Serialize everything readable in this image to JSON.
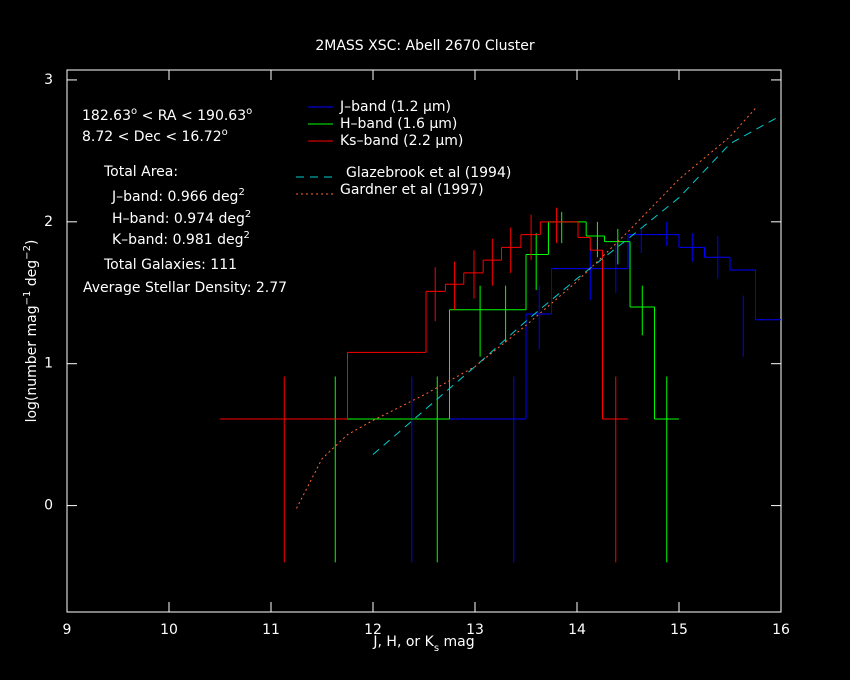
{
  "chart_data": {
    "type": "step-histogram",
    "title": "2MASS XSC: Abell 2670 Cluster",
    "x_label": [
      "J, H, or K",
      "s",
      " mag"
    ],
    "y_label": [
      "log(number mag",
      "−1",
      " deg",
      "−2",
      ")"
    ],
    "xlim": [
      9,
      16
    ],
    "ylim": [
      -0.75,
      3.07
    ],
    "xticks": [
      9,
      10,
      11,
      12,
      13,
      14,
      15,
      16
    ],
    "yticks": [
      0,
      1,
      2,
      3
    ],
    "annotations": [
      [
        "182.63",
        "o",
        " < RA < 190.63",
        "o"
      ],
      [
        "8.72 < Dec < 16.72",
        "o"
      ],
      [
        "Total Area:"
      ],
      [
        "J–band: 0.966 deg",
        "2"
      ],
      [
        "H–band: 0.974 deg",
        "2"
      ],
      [
        "K–band: 0.981 deg",
        "2"
      ],
      [
        "Total Galaxies: 111"
      ],
      [
        "Average Stellar Density: 2.77"
      ]
    ],
    "series": [
      {
        "name": "J–band (1.2 μm)",
        "color": "#0000ff",
        "bins": [
          11.88,
          13.5,
          13.75,
          14.5,
          15.0,
          15.25,
          15.5,
          15.75,
          16.0
        ],
        "values": [
          0.61,
          1.35,
          1.67,
          1.91,
          1.82,
          1.75,
          1.66,
          1.31
        ],
        "err_x": [
          12.38,
          13.38,
          13.63,
          14.13,
          14.38,
          14.63,
          14.88,
          15.13,
          15.38,
          15.63
        ],
        "err_low": [
          -0.4,
          -0.4,
          1.1,
          1.45,
          1.5,
          1.78,
          1.83,
          1.72,
          1.6,
          1.05
        ],
        "err_high": [
          0.91,
          0.91,
          1.55,
          1.82,
          1.85,
          1.95,
          2.0,
          1.92,
          1.9,
          1.48
        ]
      },
      {
        "name": "H–band (1.6 μm)",
        "color": "#00ff00",
        "bins": [
          11.13,
          12.75,
          13.5,
          13.72,
          14.09,
          14.27,
          14.52,
          14.76,
          15.0
        ],
        "values": [
          0.61,
          1.38,
          1.77,
          2.0,
          1.9,
          1.86,
          1.4,
          0.61
        ],
        "err_x": [
          11.63,
          12.63,
          13.05,
          13.3,
          13.6,
          13.85,
          14.2,
          14.4,
          14.64,
          14.88
        ],
        "err_low": [
          -0.4,
          -0.4,
          1.05,
          1.15,
          1.52,
          1.85,
          1.75,
          1.7,
          1.2,
          -0.4
        ],
        "err_high": [
          0.91,
          0.91,
          1.55,
          1.55,
          1.92,
          2.07,
          2.0,
          1.95,
          1.55,
          0.91
        ]
      },
      {
        "name": "Ks–band (2.2 μm)",
        "color": "#ff0000",
        "bins": [
          10.5,
          11.75,
          12.52,
          12.71,
          12.89,
          13.08,
          13.26,
          13.45,
          13.64,
          14.01,
          14.13,
          14.25,
          14.5
        ],
        "values": [
          0.61,
          1.08,
          1.51,
          1.56,
          1.64,
          1.73,
          1.82,
          1.91,
          2.0,
          1.89,
          1.8,
          0.61
        ],
        "err_x": [
          11.13,
          12.61,
          12.8,
          12.99,
          13.17,
          13.35,
          13.55,
          13.8,
          14.38
        ],
        "err_low": [
          -0.4,
          1.3,
          1.38,
          1.46,
          1.55,
          1.64,
          1.73,
          1.85,
          -0.4
        ],
        "err_high": [
          0.91,
          1.68,
          1.72,
          1.8,
          1.88,
          1.96,
          2.05,
          2.1,
          0.91
        ]
      }
    ],
    "models": [
      {
        "name": "Glazebrook et al (1994)",
        "color": "#00cccc",
        "style": "dashed",
        "x": [
          12.0,
          12.5,
          13.0,
          13.5,
          14.0,
          14.5,
          15.0,
          15.5,
          16.0
        ],
        "values": [
          0.36,
          0.67,
          0.98,
          1.3,
          1.6,
          1.88,
          2.17,
          2.55,
          2.75
        ]
      },
      {
        "name": "Gardner et al (1997)",
        "color": "#ff6633",
        "style": "dotted",
        "x": [
          11.25,
          11.5,
          11.75,
          12.0,
          12.5,
          13.0,
          13.5,
          14.0,
          14.5,
          15.0,
          15.5,
          15.75
        ],
        "values": [
          -0.02,
          0.33,
          0.5,
          0.6,
          0.78,
          0.98,
          1.27,
          1.58,
          1.93,
          2.3,
          2.6,
          2.8
        ]
      }
    ]
  }
}
